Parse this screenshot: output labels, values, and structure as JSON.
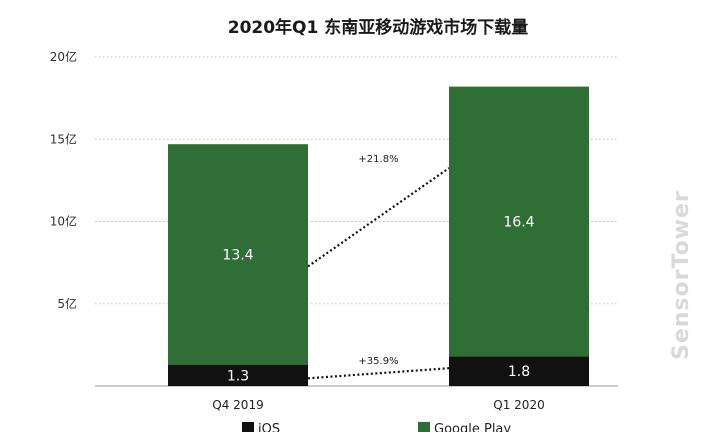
{
  "chart_data": {
    "type": "bar",
    "stacked": true,
    "title": "2020年Q1 东南亚移动游戏市场下载量",
    "categories": [
      "Q4  2019",
      "Q1 2020"
    ],
    "series": [
      {
        "name": "iOS",
        "values": [
          1.3,
          1.8
        ],
        "color": "#111111"
      },
      {
        "name": "Google Play",
        "values": [
          13.4,
          16.4
        ],
        "color": "#2f6f35"
      }
    ],
    "yticks": [
      {
        "value": 5,
        "label": "5亿"
      },
      {
        "value": 10,
        "label": "10亿"
      },
      {
        "value": 15,
        "label": "15亿"
      },
      {
        "value": 20,
        "label": "20亿"
      }
    ],
    "ylim": [
      0,
      20
    ],
    "grid": true,
    "growth_labels": [
      {
        "series": "Google Play",
        "text": "+21.8%"
      },
      {
        "series": "iOS",
        "text": "+35.9%"
      }
    ],
    "legend_position": "bottom",
    "watermark": "SensorTower"
  }
}
